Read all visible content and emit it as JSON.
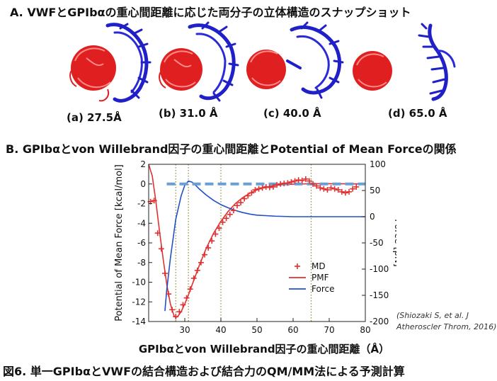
{
  "section_a": {
    "title": "A. VWFとGPIbαの重心間距離に応じた両分子の立体構造のスナップショット",
    "snapshots": [
      {
        "label": "(a) 27.5Å"
      },
      {
        "label": "(b) 31.0 Å"
      },
      {
        "label": "(c) 40.0 Å"
      },
      {
        "label": "(d) 65.0 Å"
      }
    ]
  },
  "section_b": {
    "title": "B. GPIbαとvon Willebrand因子の重心間距離とPotential of Mean Forceの関係"
  },
  "reference": {
    "line1": "(Shiozaki S, et al. J",
    "line2": "Atheroscler Throm, 2016)"
  },
  "caption": "図6. 単一GPIbαとVWFの結合構造および結合力のQM/MM法による予測計算",
  "colors": {
    "vwf": "#e02020",
    "gpib": "#2020c8",
    "md": "#e03030",
    "pmf": "#e03030",
    "force": "#2050c8",
    "zero_line": "#6a9fd4",
    "vline": "#8a8a30"
  },
  "chart_data": {
    "type": "line",
    "xlabel": "GPIbαとvon Willebrand因子の重心間距離（Å）",
    "ylabel": "Potential of Mean Force [kcal/mol]",
    "y2label": "Force [pN]",
    "xlim": [
      20,
      80
    ],
    "ylim": [
      -14,
      2
    ],
    "y2lim": [
      -200,
      100
    ],
    "xticks": [
      30,
      40,
      50,
      60,
      70,
      80
    ],
    "yticks": [
      2,
      0,
      -2,
      -4,
      -6,
      -8,
      -10,
      -12,
      -14
    ],
    "y2ticks": [
      100,
      50,
      0,
      -50,
      -100,
      -150,
      -200
    ],
    "vlines": [
      27.5,
      31.0,
      40.0,
      65.0
    ],
    "legend_position": "lower-right",
    "series": [
      {
        "name": "MD",
        "marker": "+",
        "axis": "left",
        "x": [
          20.5,
          21.5,
          22.5,
          23.5,
          24.5,
          25.5,
          26.5,
          27.5,
          28.5,
          29.5,
          30.5,
          31.5,
          32.5,
          33.5,
          34.5,
          35.5,
          36.5,
          37.5,
          38.5,
          39.5,
          40.5,
          41.5,
          42.5,
          43.5,
          44.5,
          45.5,
          46.5,
          47.5,
          48.5,
          49.5,
          50.5,
          51.5,
          52.5,
          53.5,
          54.5,
          55.5,
          56.5,
          57.5,
          58.5,
          59.5,
          60.5,
          61.5,
          62.5,
          63.5,
          64.5,
          65.5,
          66.5,
          67.5,
          68.5,
          69.5,
          70.5,
          71.5,
          72.5,
          73.5,
          74.5,
          75.5,
          76.5,
          77.5
        ],
        "y": [
          -1.8,
          -1.7,
          -5.0,
          -6.6,
          -9.1,
          -11.2,
          -12.8,
          -13.5,
          -13.0,
          -12.3,
          -11.6,
          -10.7,
          -9.6,
          -8.8,
          -8.0,
          -7.2,
          -6.5,
          -5.8,
          -5.1,
          -4.5,
          -3.9,
          -3.5,
          -3.1,
          -2.7,
          -2.2,
          -1.9,
          -1.5,
          -1.2,
          -0.9,
          -0.6,
          -0.5,
          -0.4,
          -0.3,
          -0.35,
          -0.3,
          -0.1,
          0.0,
          0.05,
          0.1,
          0.2,
          0.3,
          0.4,
          0.35,
          0.5,
          0.3,
          0.0,
          -0.2,
          -0.4,
          -0.5,
          -0.6,
          -0.4,
          -0.5,
          -0.6,
          -0.8,
          -0.9,
          -0.8,
          -0.5,
          -0.3
        ]
      },
      {
        "name": "PMF",
        "axis": "left",
        "x": [
          20,
          21,
          22,
          23,
          24,
          25,
          26,
          27,
          27.5,
          28,
          29,
          30,
          31,
          32,
          33,
          34,
          35,
          36,
          38,
          40,
          42,
          44,
          46,
          48,
          50,
          52,
          55,
          58,
          62,
          66,
          70,
          75,
          80
        ],
        "y": [
          2.0,
          0.8,
          -1.8,
          -4.8,
          -7.6,
          -10.2,
          -12.2,
          -13.4,
          -13.6,
          -13.5,
          -13.0,
          -12.2,
          -11.3,
          -10.3,
          -9.3,
          -8.3,
          -7.4,
          -6.5,
          -5.0,
          -3.8,
          -2.8,
          -2.0,
          -1.4,
          -0.95,
          -0.6,
          -0.35,
          -0.15,
          -0.05,
          0.0,
          0.02,
          0.02,
          0.01,
          0.0
        ]
      },
      {
        "name": "Force",
        "axis": "right",
        "x": [
          24.5,
          25,
          26,
          27,
          27.5,
          28,
          29,
          30,
          31,
          32,
          33,
          34,
          35,
          36,
          38,
          40,
          42,
          44,
          46,
          48,
          50,
          55,
          60,
          65,
          70,
          75,
          80
        ],
        "y": [
          -180,
          -140,
          -80,
          -30,
          -5,
          10,
          40,
          60,
          68,
          66,
          60,
          53,
          47,
          41,
          31,
          23,
          17,
          12,
          8,
          5,
          3,
          1,
          0,
          0,
          0,
          0,
          0
        ]
      },
      {
        "name": "",
        "style": "dashed",
        "axis": "left",
        "x": [
          25,
          80
        ],
        "y": [
          0,
          0
        ]
      }
    ]
  }
}
